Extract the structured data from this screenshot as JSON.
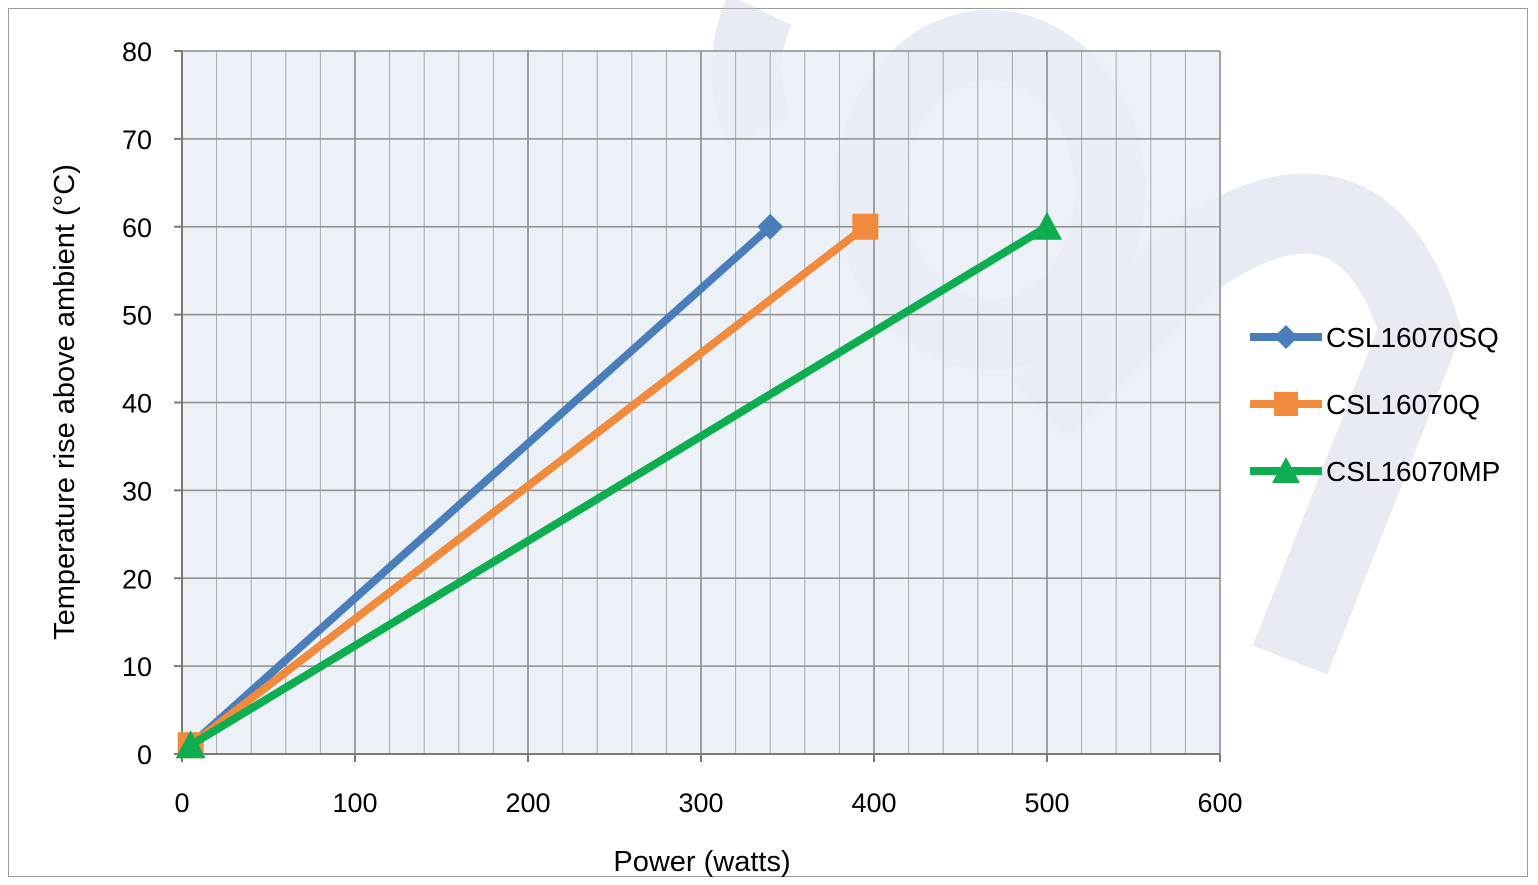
{
  "chart_data": {
    "type": "line",
    "title": "",
    "xlabel": "Power (watts)",
    "ylabel": "Temperature  rise  above  ambient  (°C)",
    "xlim": [
      0,
      600
    ],
    "ylim": [
      0,
      80
    ],
    "x_ticks": [
      0,
      100,
      200,
      300,
      400,
      500,
      600
    ],
    "y_ticks": [
      0,
      10,
      20,
      30,
      40,
      50,
      60,
      70,
      80
    ],
    "x_minor_step": 20,
    "grid": true,
    "plot_background": "#e9eef6",
    "legend_position": "right",
    "series": [
      {
        "name": "CSL16070SQ",
        "marker": "diamond",
        "color": "#4a7ebb",
        "x": [
          5,
          340
        ],
        "y": [
          1,
          60
        ]
      },
      {
        "name": "CSL16070Q",
        "marker": "square",
        "color": "#f08a3c",
        "x": [
          5,
          395
        ],
        "y": [
          1,
          60
        ]
      },
      {
        "name": "CSL16070MP",
        "marker": "triangle",
        "color": "#0ead4f",
        "x": [
          5,
          500
        ],
        "y": [
          1,
          60
        ]
      }
    ]
  }
}
